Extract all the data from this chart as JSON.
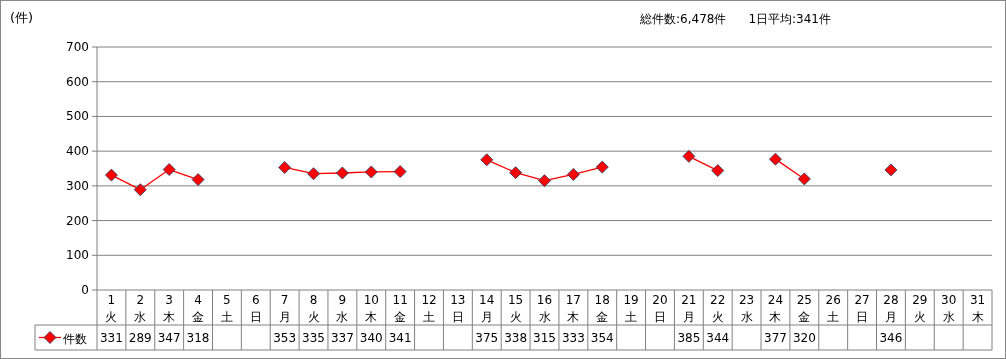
{
  "chart_data": {
    "type": "line",
    "ylabel": "(件)",
    "annotations": [
      "総件数:6,478件",
      "1日平均:341件"
    ],
    "categories": [
      "1\n火",
      "2\n水",
      "3\n木",
      "4\n金",
      "5\n土",
      "6\n日",
      "7\n月",
      "8\n火",
      "9\n水",
      "10\n木",
      "11\n金",
      "12\n土",
      "13\n日",
      "14\n月",
      "15\n火",
      "16\n水",
      "17\n木",
      "18\n金",
      "19\n土",
      "20\n日",
      "21\n月",
      "22\n火",
      "23\n水",
      "24\n木",
      "25\n金",
      "26\n土",
      "27\n日",
      "28\n月",
      "29\n火",
      "30\n水",
      "31\n木"
    ],
    "series": [
      {
        "name": "件数",
        "color": "#ff0000",
        "values": [
          331,
          289,
          347,
          318,
          null,
          null,
          353,
          335,
          337,
          340,
          341,
          null,
          null,
          375,
          338,
          315,
          333,
          354,
          null,
          null,
          385,
          344,
          null,
          377,
          320,
          null,
          null,
          346,
          null,
          null,
          null
        ]
      }
    ],
    "ylim": [
      0,
      700
    ],
    "yticks": [
      0,
      100,
      200,
      300,
      400,
      500,
      600,
      700
    ],
    "grid": "y",
    "marker": "diamond",
    "line_style": "solid",
    "legend": "bottom",
    "data_labels": true
  }
}
